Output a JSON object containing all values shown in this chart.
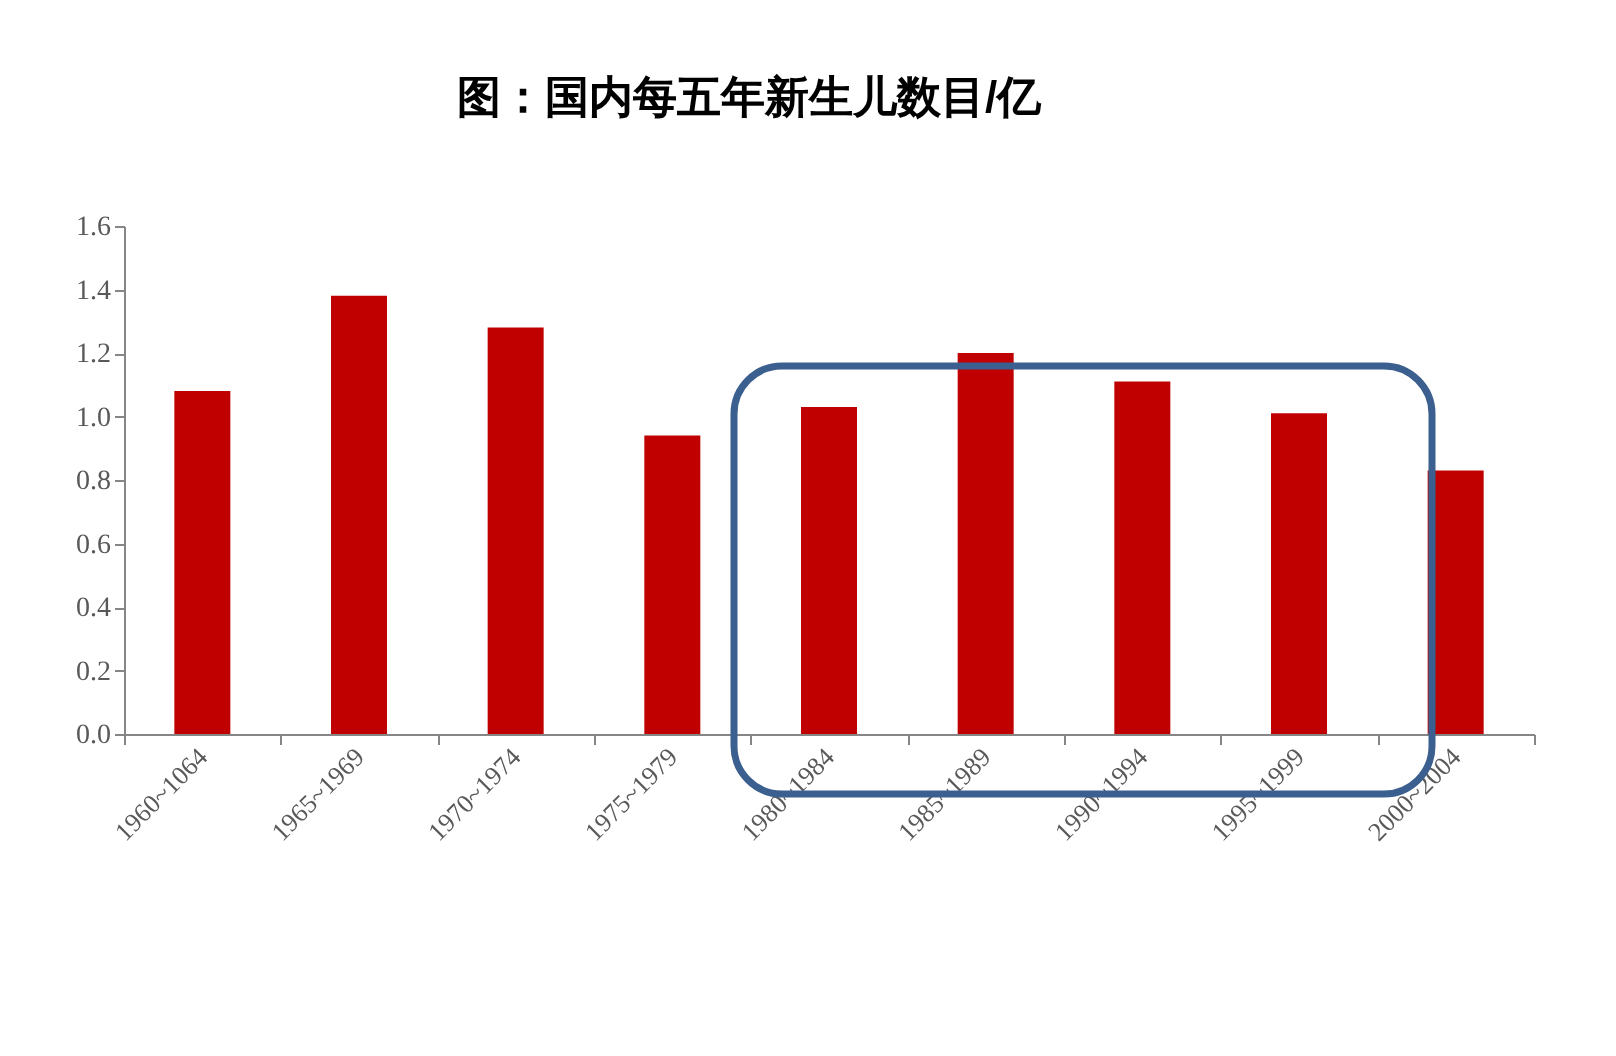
{
  "chart_data": {
    "type": "bar",
    "title": "图：国内每五年新生儿数目/亿",
    "categories": [
      "1960~1064",
      "1965~1969",
      "1970~1974",
      "1975~1979",
      "1980~1984",
      "1985~1989",
      "1990~1994",
      "1995~1999",
      "2000~2004"
    ],
    "values": [
      1.08,
      1.38,
      1.28,
      0.94,
      1.03,
      1.2,
      1.11,
      1.01,
      0.83
    ],
    "color": "#c00000",
    "ylim": [
      0,
      1.6
    ],
    "yticks": [
      {
        "value": 0,
        "label": "0.0"
      },
      {
        "value": 0.2,
        "label": "0.2"
      },
      {
        "value": 0.4,
        "label": "0.4"
      },
      {
        "value": 0.6,
        "label": "0.6"
      },
      {
        "value": 0.8,
        "label": "0.8"
      },
      {
        "value": 1.0,
        "label": "1.0"
      },
      {
        "value": 1.2,
        "label": "1.2"
      },
      {
        "value": 1.4,
        "label": "1.4"
      },
      {
        "value": 1.6,
        "label": "1.6"
      }
    ],
    "grid": false
  }
}
